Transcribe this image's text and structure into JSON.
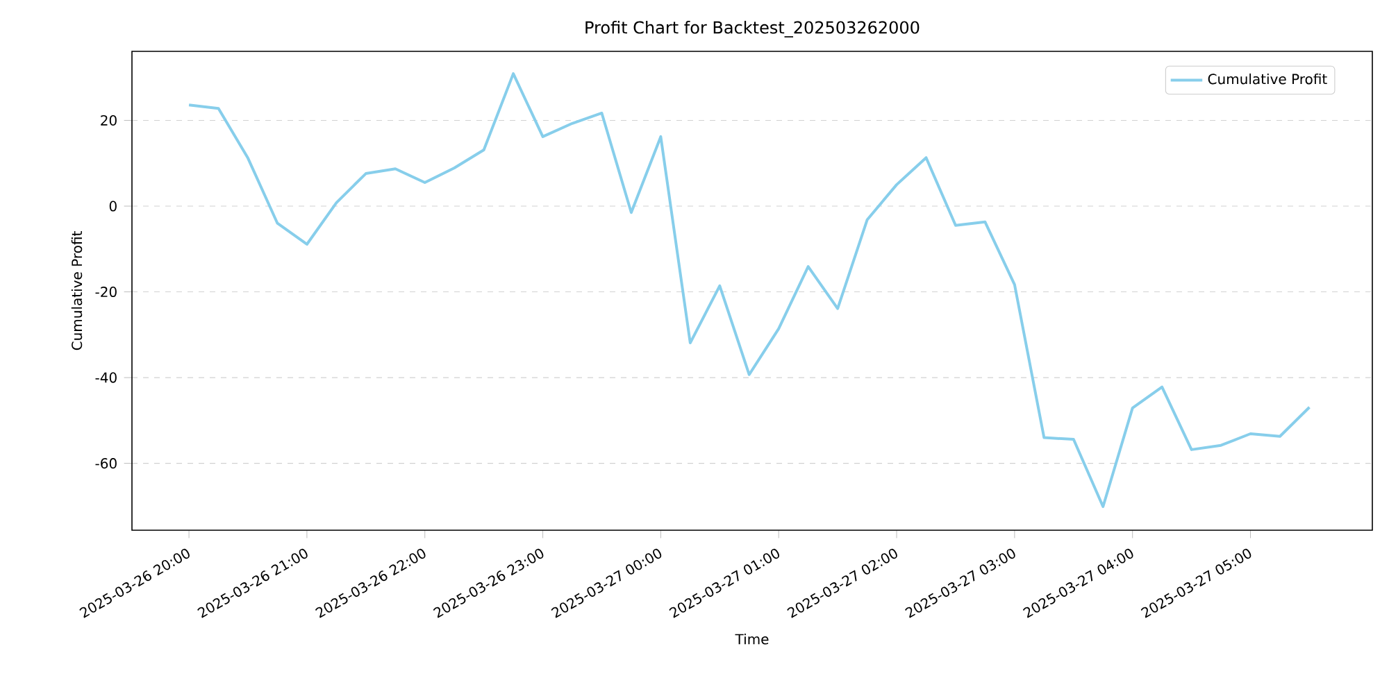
{
  "chart_data": {
    "type": "line",
    "title": "Profit Chart for Backtest_202503262000",
    "xlabel": "Time",
    "ylabel": "Cumulative Profit",
    "x": [
      "2025-03-26T20:00",
      "2025-03-26T20:15",
      "2025-03-26T20:30",
      "2025-03-26T20:45",
      "2025-03-26T21:00",
      "2025-03-26T21:15",
      "2025-03-26T21:30",
      "2025-03-26T21:45",
      "2025-03-26T22:00",
      "2025-03-26T22:15",
      "2025-03-26T22:30",
      "2025-03-26T22:45",
      "2025-03-26T23:00",
      "2025-03-26T23:15",
      "2025-03-26T23:30",
      "2025-03-26T23:45",
      "2025-03-27T00:00",
      "2025-03-27T00:15",
      "2025-03-27T00:30",
      "2025-03-27T00:45",
      "2025-03-27T01:00",
      "2025-03-27T01:15",
      "2025-03-27T01:30",
      "2025-03-27T01:45",
      "2025-03-27T02:00",
      "2025-03-27T02:15",
      "2025-03-27T02:30",
      "2025-03-27T02:45",
      "2025-03-27T03:00",
      "2025-03-27T03:15",
      "2025-03-27T03:30",
      "2025-03-27T03:45",
      "2025-03-27T04:00",
      "2025-03-27T04:15",
      "2025-03-27T04:30",
      "2025-03-27T04:45",
      "2025-03-27T05:00",
      "2025-03-27T05:15",
      "2025-03-27T05:30"
    ],
    "series": [
      {
        "name": "Cumulative Profit",
        "color": "#87ceeb",
        "line_style": "solid",
        "values": [
          23.6,
          22.8,
          11.2,
          -4.0,
          -8.9,
          0.8,
          7.6,
          8.7,
          5.5,
          8.9,
          13.1,
          30.9,
          16.2,
          19.3,
          21.7,
          -1.5,
          16.2,
          -31.9,
          -18.6,
          -39.3,
          -28.6,
          -14.1,
          -23.9,
          -3.2,
          5.0,
          11.3,
          -4.5,
          -3.7,
          -18.3,
          -54.0,
          -54.4,
          -70.1,
          -47.1,
          -42.2,
          -56.8,
          -55.8,
          -53.1,
          -53.7,
          -46.9
        ]
      }
    ],
    "xlim": [
      "2025-03-26T19:31",
      "2025-03-27T06:02"
    ],
    "xticks": [
      {
        "value": "2025-03-26T20:00",
        "label": "2025-03-26 20:00"
      },
      {
        "value": "2025-03-26T21:00",
        "label": "2025-03-26 21:00"
      },
      {
        "value": "2025-03-26T22:00",
        "label": "2025-03-26 22:00"
      },
      {
        "value": "2025-03-26T23:00",
        "label": "2025-03-26 23:00"
      },
      {
        "value": "2025-03-27T00:00",
        "label": "2025-03-27 00:00"
      },
      {
        "value": "2025-03-27T01:00",
        "label": "2025-03-27 01:00"
      },
      {
        "value": "2025-03-27T02:00",
        "label": "2025-03-27 02:00"
      },
      {
        "value": "2025-03-27T03:00",
        "label": "2025-03-27 03:00"
      },
      {
        "value": "2025-03-27T04:00",
        "label": "2025-03-27 04:00"
      },
      {
        "value": "2025-03-27T05:00",
        "label": "2025-03-27 05:00"
      }
    ],
    "ylim": [
      -75.6,
      36.1
    ],
    "yticks": [
      -60,
      -40,
      -20,
      0,
      20
    ],
    "grid": "y",
    "legend": "top right"
  }
}
